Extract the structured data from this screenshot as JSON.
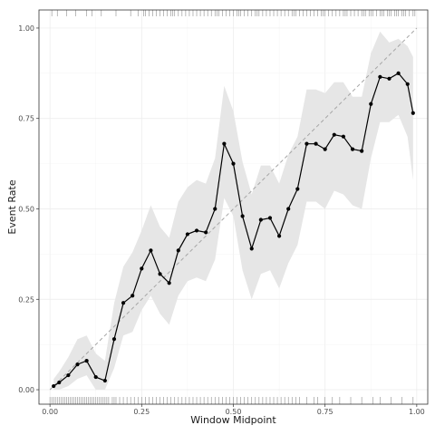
{
  "chart_data": {
    "type": "line",
    "title": "",
    "xlabel": "Window Midpoint",
    "ylabel": "Event Rate",
    "xlim": [
      -0.03,
      1.03
    ],
    "ylim": [
      -0.04,
      1.05
    ],
    "x_ticks": [
      0.0,
      0.25,
      0.5,
      0.75,
      1.0
    ],
    "x_tick_labels": [
      "0.00",
      "0.25",
      "0.50",
      "0.75",
      "1.00"
    ],
    "y_ticks": [
      0.0,
      0.25,
      0.5,
      0.75,
      1.0
    ],
    "y_tick_labels": [
      "0.00",
      "0.25",
      "0.50",
      "0.75",
      "1.00"
    ],
    "grid": true,
    "reference_line": {
      "style": "dashed",
      "from": [
        0,
        0
      ],
      "to": [
        1,
        1
      ],
      "color": "#a6a6a6"
    },
    "colors": {
      "line": "#000000",
      "band": "#e6e6e6",
      "panel_border": "#333333",
      "grid": "#ebebeb",
      "rug": "#8c8c8c"
    },
    "series": [
      {
        "x": [
          0.01,
          0.025,
          0.05,
          0.075,
          0.1,
          0.125,
          0.15,
          0.175,
          0.2,
          0.225,
          0.25,
          0.275,
          0.3,
          0.325,
          0.35,
          0.375,
          0.4,
          0.425,
          0.45,
          0.475,
          0.5,
          0.525,
          0.55,
          0.575,
          0.6,
          0.625,
          0.65,
          0.675,
          0.7,
          0.725,
          0.75,
          0.775,
          0.8,
          0.825,
          0.85,
          0.875,
          0.9,
          0.925,
          0.95,
          0.975,
          0.99
        ],
        "y": [
          0.01,
          0.02,
          0.04,
          0.07,
          0.08,
          0.035,
          0.025,
          0.14,
          0.24,
          0.26,
          0.335,
          0.385,
          0.32,
          0.295,
          0.385,
          0.43,
          0.44,
          0.435,
          0.5,
          0.68,
          0.625,
          0.48,
          0.39,
          0.47,
          0.475,
          0.425,
          0.5,
          0.555,
          0.68,
          0.68,
          0.665,
          0.705,
          0.7,
          0.665,
          0.66,
          0.79,
          0.865,
          0.86,
          0.875,
          0.845,
          0.765
        ],
        "ci_lower": [
          0.0,
          0.0,
          0.01,
          0.03,
          0.04,
          0.0,
          0.0,
          0.06,
          0.15,
          0.16,
          0.22,
          0.26,
          0.21,
          0.18,
          0.26,
          0.3,
          0.31,
          0.3,
          0.36,
          0.53,
          0.48,
          0.33,
          0.25,
          0.32,
          0.33,
          0.28,
          0.35,
          0.4,
          0.52,
          0.52,
          0.5,
          0.55,
          0.54,
          0.51,
          0.5,
          0.64,
          0.74,
          0.74,
          0.76,
          0.7,
          0.58
        ],
        "ci_upper": [
          0.03,
          0.05,
          0.09,
          0.14,
          0.15,
          0.1,
          0.08,
          0.24,
          0.34,
          0.38,
          0.44,
          0.51,
          0.45,
          0.42,
          0.52,
          0.56,
          0.58,
          0.57,
          0.64,
          0.84,
          0.77,
          0.63,
          0.54,
          0.62,
          0.62,
          0.57,
          0.65,
          0.7,
          0.83,
          0.83,
          0.82,
          0.85,
          0.85,
          0.81,
          0.81,
          0.93,
          0.99,
          0.96,
          0.97,
          0.95,
          0.92
        ]
      }
    ],
    "rug_top": [
      0.005,
      0.02,
      0.045,
      0.07,
      0.1,
      0.115,
      0.14,
      0.18,
      0.22,
      0.24,
      0.255,
      0.26,
      0.27,
      0.28,
      0.29,
      0.3,
      0.31,
      0.32,
      0.33,
      0.335,
      0.34,
      0.35,
      0.36,
      0.37,
      0.38,
      0.39,
      0.4,
      0.41,
      0.42,
      0.43,
      0.44,
      0.45,
      0.455,
      0.46,
      0.47,
      0.48,
      0.49,
      0.5,
      0.51,
      0.515,
      0.52,
      0.53,
      0.54,
      0.55,
      0.56,
      0.565,
      0.57,
      0.58,
      0.59,
      0.6,
      0.61,
      0.62,
      0.63,
      0.64,
      0.65,
      0.66,
      0.665,
      0.67,
      0.68,
      0.69,
      0.7,
      0.71,
      0.72,
      0.73,
      0.74,
      0.745,
      0.75,
      0.76,
      0.77,
      0.78,
      0.79,
      0.8,
      0.805,
      0.81,
      0.82,
      0.83,
      0.84,
      0.85,
      0.855,
      0.86,
      0.87,
      0.875,
      0.88,
      0.89,
      0.9,
      0.905,
      0.91,
      0.92,
      0.925,
      0.93,
      0.94,
      0.945,
      0.95,
      0.96,
      0.965,
      0.97,
      0.98,
      0.99,
      0.995
    ],
    "rug_bottom": [
      0.0,
      0.005,
      0.01,
      0.015,
      0.02,
      0.025,
      0.03,
      0.035,
      0.04,
      0.045,
      0.05,
      0.055,
      0.06,
      0.065,
      0.07,
      0.075,
      0.08,
      0.085,
      0.09,
      0.095,
      0.1,
      0.105,
      0.11,
      0.115,
      0.12,
      0.125,
      0.13,
      0.135,
      0.14,
      0.145,
      0.15,
      0.155,
      0.16,
      0.17,
      0.175,
      0.18,
      0.19,
      0.2,
      0.21,
      0.22,
      0.23,
      0.24,
      0.25,
      0.26,
      0.27,
      0.28,
      0.29,
      0.3,
      0.31,
      0.32,
      0.33,
      0.34,
      0.35,
      0.36,
      0.37,
      0.38,
      0.39,
      0.4,
      0.41,
      0.42,
      0.43,
      0.44,
      0.45,
      0.46,
      0.47,
      0.48,
      0.49,
      0.5,
      0.51,
      0.52,
      0.53,
      0.54,
      0.55,
      0.56,
      0.57,
      0.58,
      0.59,
      0.6,
      0.61,
      0.62,
      0.63,
      0.64,
      0.65,
      0.66,
      0.67,
      0.68,
      0.7,
      0.72,
      0.73,
      0.75,
      0.77,
      0.79,
      0.82,
      0.85,
      0.88,
      0.9,
      0.93,
      0.96,
      0.99
    ]
  }
}
